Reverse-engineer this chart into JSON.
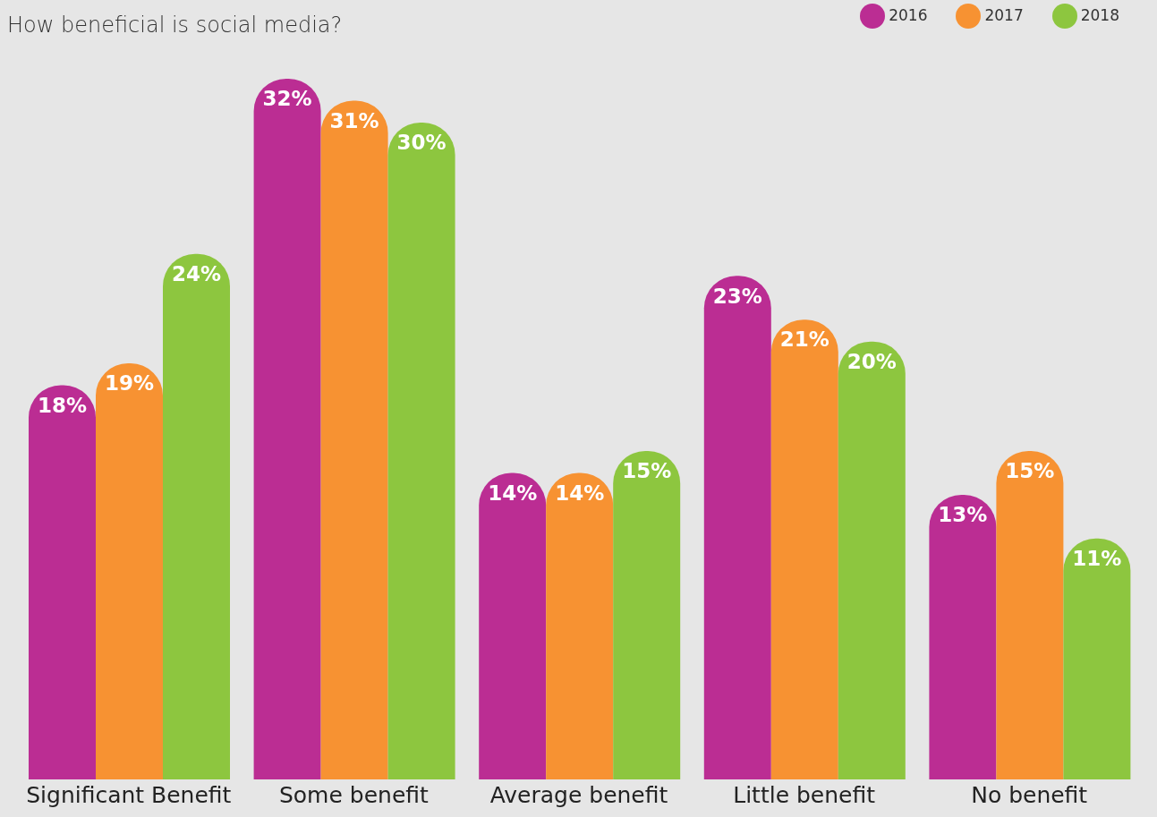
{
  "chart_data": {
    "type": "bar",
    "title": "How beneficial is social media?",
    "categories": [
      "Significant Benefit",
      "Some benefit",
      "Average benefit",
      "Little benefit",
      "No benefit"
    ],
    "series": [
      {
        "name": "2016",
        "color": "#bb2d93",
        "values": [
          18,
          32,
          14,
          23,
          13
        ],
        "value_labels": [
          "18%",
          "32%",
          "14%",
          "23%",
          "13%"
        ]
      },
      {
        "name": "2017",
        "color": "#f79232",
        "values": [
          19,
          31,
          14,
          21,
          15
        ],
        "value_labels": [
          "19%",
          "31%",
          "14%",
          "21%",
          "15%"
        ]
      },
      {
        "name": "2018",
        "color": "#8dc63f",
        "values": [
          24,
          30,
          15,
          20,
          11
        ],
        "value_labels": [
          "24%",
          "30%",
          "15%",
          "20%",
          "11%"
        ]
      }
    ],
    "legend": "top right"
  }
}
